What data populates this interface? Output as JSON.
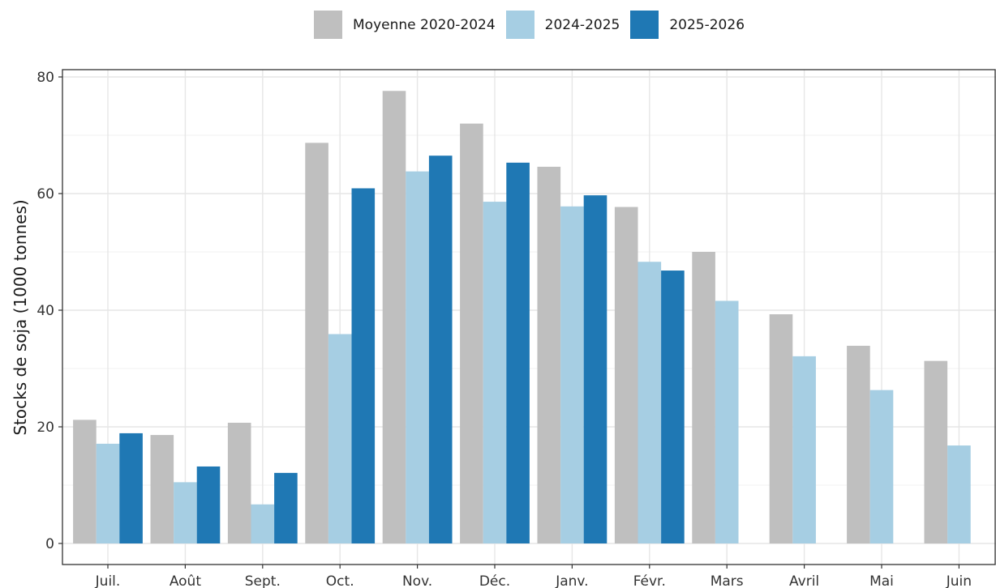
{
  "chart_data": {
    "type": "bar",
    "title": "",
    "xlabel": "",
    "ylabel": "Stocks de soja (1000 tonnes)",
    "ylim": [
      0,
      80
    ],
    "yticks": [
      0,
      20,
      40,
      60,
      80
    ],
    "grid": true,
    "legend_position": "top",
    "categories": [
      "Juil.",
      "Août",
      "Sept.",
      "Oct.",
      "Nov.",
      "Déc.",
      "Janv.",
      "Févr.",
      "Mars",
      "Avril",
      "Mai",
      "Juin"
    ],
    "series": [
      {
        "name": "Moyenne 2020-2024",
        "color": "#bfbfbf",
        "values": [
          21.2,
          18.6,
          20.7,
          68.7,
          77.6,
          72.0,
          64.6,
          57.7,
          50.0,
          39.3,
          33.9,
          31.3
        ]
      },
      {
        "name": "2024-2025",
        "color": "#a6cee3",
        "values": [
          17.1,
          10.5,
          6.7,
          35.9,
          63.8,
          58.6,
          57.8,
          48.3,
          41.6,
          32.1,
          26.3,
          16.8
        ]
      },
      {
        "name": "2025-2026",
        "color": "#1f78b4",
        "values": [
          18.9,
          13.2,
          12.1,
          60.9,
          66.5,
          65.3,
          59.7,
          46.8,
          null,
          null,
          null,
          null
        ]
      }
    ]
  }
}
